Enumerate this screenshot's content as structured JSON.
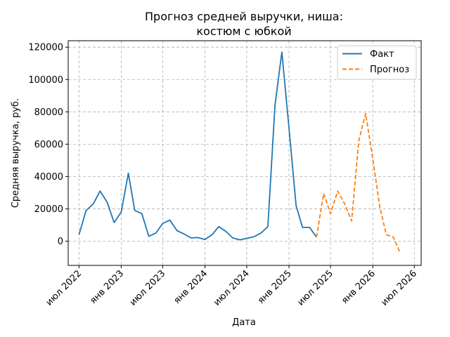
{
  "chart_data": {
    "type": "line",
    "title": [
      "Прогноз средней выручки, ниша:",
      "костюм с юбкой"
    ],
    "xlabel": "Дата",
    "ylabel": "Средняя выручка, руб.",
    "ylim": [
      -15000,
      124000
    ],
    "xlim": [
      "2022-05-15",
      "2026-07-31"
    ],
    "grid": true,
    "legend_position": "top-right",
    "y_ticks": [
      0,
      20000,
      40000,
      60000,
      80000,
      100000,
      120000
    ],
    "x_ticks": [
      {
        "date": "2022-07-01",
        "label": "июл 2022"
      },
      {
        "date": "2023-01-01",
        "label": "янв 2023"
      },
      {
        "date": "2023-07-01",
        "label": "июл 2023"
      },
      {
        "date": "2024-01-01",
        "label": "янв 2024"
      },
      {
        "date": "2024-07-01",
        "label": "июл 2024"
      },
      {
        "date": "2025-01-01",
        "label": "янв 2025"
      },
      {
        "date": "2025-07-01",
        "label": "июл 2025"
      },
      {
        "date": "2026-01-01",
        "label": "янв 2026"
      },
      {
        "date": "2026-07-01",
        "label": "июл 2026"
      }
    ],
    "series": [
      {
        "name": "Факт",
        "color": "#1f77b4",
        "style": "solid",
        "x": [
          "2022-07-01",
          "2022-08-01",
          "2022-09-01",
          "2022-10-01",
          "2022-11-01",
          "2022-12-01",
          "2023-01-01",
          "2023-02-01",
          "2023-03-01",
          "2023-04-01",
          "2023-05-01",
          "2023-06-01",
          "2023-07-01",
          "2023-08-01",
          "2023-09-01",
          "2023-10-01",
          "2023-11-01",
          "2023-12-01",
          "2024-01-01",
          "2024-02-01",
          "2024-03-01",
          "2024-04-01",
          "2024-05-01",
          "2024-06-01",
          "2024-07-01",
          "2024-08-01",
          "2024-09-01",
          "2024-10-01",
          "2024-11-01",
          "2024-12-01",
          "2025-01-01",
          "2025-02-01",
          "2025-03-01",
          "2025-04-01",
          "2025-05-01"
        ],
        "y": [
          4000,
          19000,
          23000,
          31000,
          24000,
          11500,
          18000,
          42000,
          19000,
          17000,
          3000,
          5000,
          11000,
          13000,
          6500,
          4500,
          2000,
          2200,
          1000,
          4000,
          9000,
          6000,
          2000,
          800,
          1700,
          2700,
          5000,
          9000,
          84000,
          117000,
          70000,
          22000,
          8500,
          8500,
          2500
        ]
      },
      {
        "name": "Прогноз",
        "color": "#ff7f0e",
        "style": "dashed",
        "x": [
          "2025-05-01",
          "2025-06-01",
          "2025-07-01",
          "2025-08-01",
          "2025-09-01",
          "2025-10-01",
          "2025-11-01",
          "2025-12-01",
          "2026-01-01",
          "2026-02-01",
          "2026-03-01",
          "2026-04-01",
          "2026-05-01"
        ],
        "y": [
          2500,
          29500,
          17000,
          31000,
          23000,
          12500,
          62000,
          79000,
          51000,
          21000,
          4000,
          2500,
          -7500
        ]
      }
    ]
  }
}
